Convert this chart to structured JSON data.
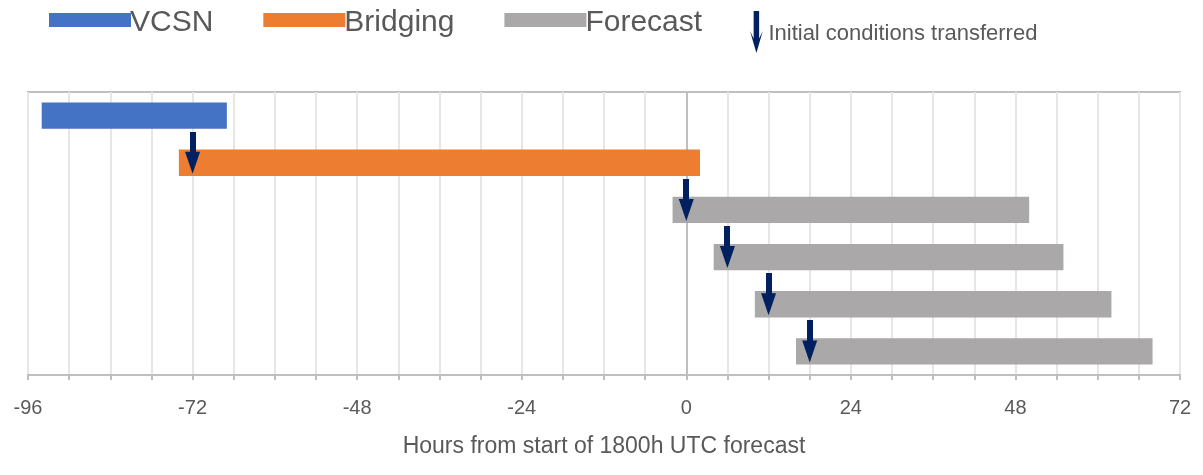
{
  "chart_data": {
    "type": "bar",
    "orientation": "horizontal",
    "xlabel": "Hours from start of 1800h UTC forecast",
    "categories": [
      null,
      null,
      null,
      null,
      null,
      null
    ],
    "series": [
      {
        "name": "VCSN",
        "color": "#4472c4",
        "base": [
          -94,
          null,
          null,
          null,
          null,
          null
        ],
        "values": [
          27,
          null,
          null,
          null,
          null,
          null
        ]
      },
      {
        "name": "Bridging",
        "color": "#ed7d31",
        "base": [
          null,
          -74,
          null,
          null,
          null,
          null
        ],
        "values": [
          null,
          76,
          null,
          null,
          null,
          null
        ]
      },
      {
        "name": "Forecast",
        "color": "#aaa8a8",
        "base": [
          null,
          null,
          -2,
          4,
          10,
          16
        ],
        "values": [
          null,
          null,
          52,
          51,
          52,
          52
        ]
      },
      {
        "name": "Initial conditions transferred",
        "type": "scatter",
        "marker": "triangle",
        "color": "#002060",
        "values": [
          null,
          -72,
          0,
          6,
          12,
          18
        ]
      }
    ],
    "xlim": [
      -96,
      72
    ],
    "xticks": [
      -96,
      {
        "value": -90,
        "label": null
      },
      {
        "value": -84,
        "label": null
      },
      {
        "value": -78,
        "label": null
      },
      -72,
      {
        "value": -66,
        "label": null
      },
      {
        "value": -60,
        "label": null
      },
      {
        "value": -54,
        "label": null
      },
      -48,
      {
        "value": -42,
        "label": null
      },
      {
        "value": -36,
        "label": null
      },
      {
        "value": -30,
        "label": null
      },
      -24,
      {
        "value": -18,
        "label": null
      },
      {
        "value": -12,
        "label": null
      },
      {
        "value": -6,
        "label": null
      },
      0,
      {
        "value": 6,
        "label": null
      },
      {
        "value": 12,
        "label": null
      },
      {
        "value": 18,
        "label": null
      },
      24,
      {
        "value": 30,
        "label": null
      },
      {
        "value": 36,
        "label": null
      },
      {
        "value": 42,
        "label": null
      },
      48,
      {
        "value": 54,
        "label": null
      },
      {
        "value": 60,
        "label": null
      },
      {
        "value": 66,
        "label": null
      },
      72
    ],
    "grid": "x",
    "legend": "top",
    "tick_labels": "x"
  }
}
